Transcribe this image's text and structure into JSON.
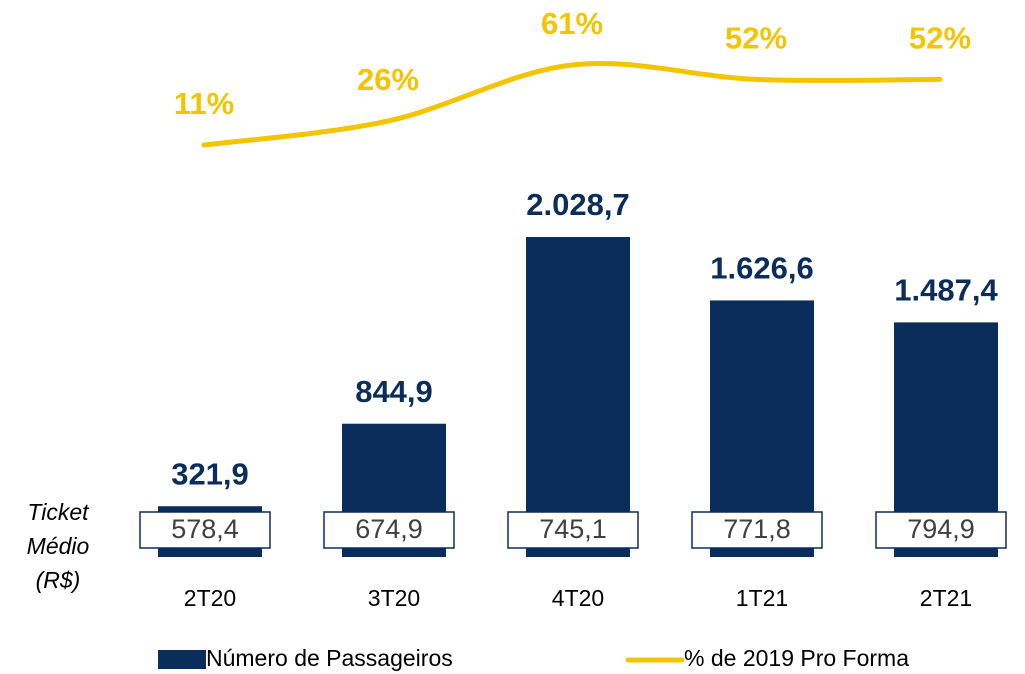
{
  "chart_data": {
    "type": "bar",
    "categories": [
      "2T20",
      "3T20",
      "4T20",
      "1T21",
      "2T21"
    ],
    "series": [
      {
        "name": "Número de Passageiros",
        "type": "bar",
        "color": "#0b2d5b",
        "values": [
          321.9,
          844.9,
          2028.7,
          1626.6,
          1487.4
        ],
        "value_labels": [
          "321,9",
          "844,9",
          "2.028,7",
          "1.626,6",
          "1.487,4"
        ]
      },
      {
        "name": "% de 2019 Pro Forma",
        "type": "line",
        "axis": "y2",
        "color": "#f5c400",
        "values": [
          11,
          26,
          61,
          52,
          52
        ],
        "value_labels": [
          "11%",
          "26%",
          "61%",
          "52%",
          "52%"
        ]
      }
    ],
    "ticket": {
      "label": "Ticket Médio (R$)",
      "values": [
        578.4,
        674.9,
        745.1,
        771.8,
        794.9
      ],
      "value_labels": [
        "578,4",
        "674,9",
        "745,1",
        "771,8",
        "794,9"
      ]
    }
  }
}
